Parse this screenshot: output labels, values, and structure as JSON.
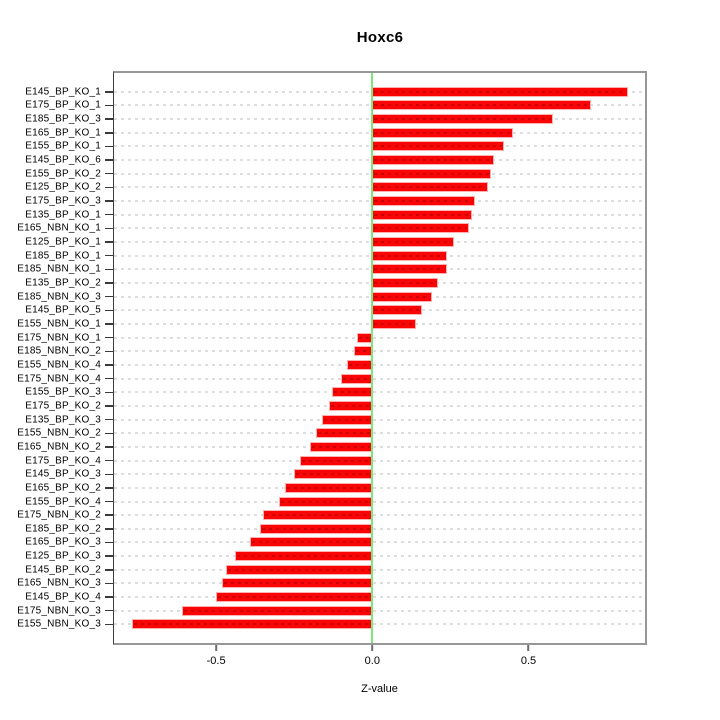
{
  "chart_data": {
    "type": "bar",
    "orientation": "horizontal",
    "title": "Hoxc6",
    "xlabel": "Z-value",
    "ylabel": "",
    "legend": "none",
    "grid": "dashed horizontal per category",
    "xlim": [
      -0.827,
      0.873
    ],
    "x_ticks": [
      -0.5,
      0.0,
      0.5
    ],
    "x_tick_labels": [
      "-0.5",
      "0.0",
      "0.5"
    ],
    "zero_line": 0,
    "categories": [
      "E145_BP_KO_1",
      "E175_BP_KO_1",
      "E185_BP_KO_3",
      "E165_BP_KO_1",
      "E155_BP_KO_1",
      "E145_BP_KO_6",
      "E155_BP_KO_2",
      "E125_BP_KO_2",
      "E175_BP_KO_3",
      "E135_BP_KO_1",
      "E165_NBN_KO_1",
      "E125_BP_KO_1",
      "E185_BP_KO_1",
      "E185_NBN_KO_1",
      "E135_BP_KO_2",
      "E185_NBN_KO_3",
      "E145_BP_KO_5",
      "E155_NBN_KO_1",
      "E175_NBN_KO_1",
      "E185_NBN_KO_2",
      "E155_NBN_KO_4",
      "E175_NBN_KO_4",
      "E155_BP_KO_3",
      "E175_BP_KO_2",
      "E135_BP_KO_3",
      "E155_NBN_KO_2",
      "E165_NBN_KO_2",
      "E175_BP_KO_4",
      "E145_BP_KO_3",
      "E165_BP_KO_2",
      "E155_BP_KO_4",
      "E175_NBN_KO_2",
      "E185_BP_KO_2",
      "E165_BP_KO_3",
      "E125_BP_KO_3",
      "E145_BP_KO_2",
      "E165_NBN_KO_3",
      "E145_BP_KO_4",
      "E175_NBN_KO_3",
      "E155_NBN_KO_3"
    ],
    "values": [
      0.82,
      0.7,
      0.58,
      0.45,
      0.42,
      0.39,
      0.38,
      0.37,
      0.33,
      0.32,
      0.31,
      0.26,
      0.24,
      0.24,
      0.21,
      0.19,
      0.16,
      0.14,
      -0.05,
      -0.06,
      -0.08,
      -0.1,
      -0.13,
      -0.14,
      -0.16,
      -0.18,
      -0.2,
      -0.23,
      -0.25,
      -0.28,
      -0.3,
      -0.35,
      -0.36,
      -0.39,
      -0.44,
      -0.47,
      -0.48,
      -0.5,
      -0.61,
      -0.77
    ],
    "colors": {
      "bar": "#fa0505",
      "bar_border": "#ffb0b0",
      "bar_dash_line": "#cf0000",
      "zero_line": "#7ce87c",
      "gridline": "#dedede",
      "plot_border": "#979797",
      "axis_text": "#000000"
    }
  }
}
